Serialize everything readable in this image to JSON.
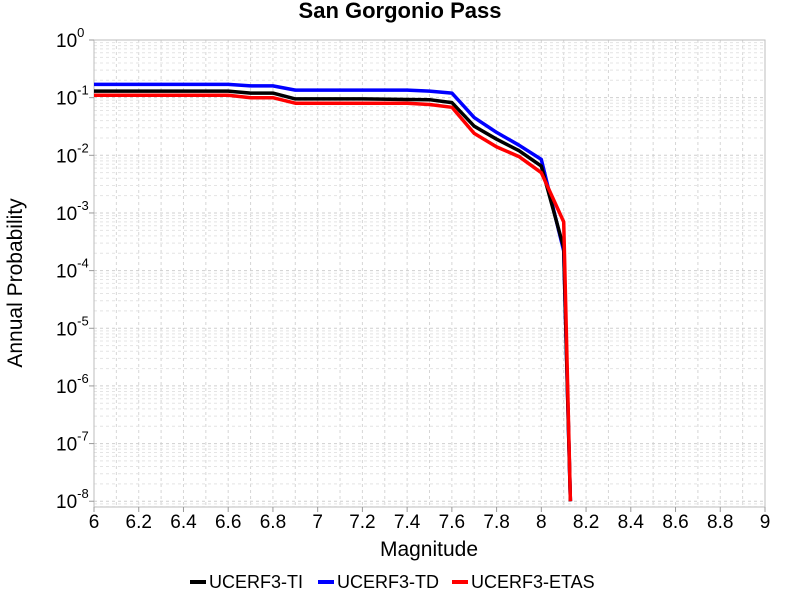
{
  "chart_data": {
    "type": "line",
    "title": "San Gorgonio Pass",
    "xlabel": "Magnitude",
    "ylabel": "Annual Probability",
    "xlim": [
      6,
      9
    ],
    "ylim_log10": [
      -8.1,
      0
    ],
    "yscale": "log",
    "grid": true,
    "legend_position": "bottom-center",
    "x_ticks": [
      "6",
      "6.2",
      "6.4",
      "6.6",
      "6.8",
      "7",
      "7.2",
      "7.4",
      "7.6",
      "7.8",
      "8",
      "8.2",
      "8.4",
      "8.6",
      "8.8",
      "9"
    ],
    "y_ticks": [
      {
        "base": "10",
        "exp": "0"
      },
      {
        "base": "10",
        "exp": "-1"
      },
      {
        "base": "10",
        "exp": "-2"
      },
      {
        "base": "10",
        "exp": "-3"
      },
      {
        "base": "10",
        "exp": "-4"
      },
      {
        "base": "10",
        "exp": "-5"
      },
      {
        "base": "10",
        "exp": "-6"
      },
      {
        "base": "10",
        "exp": "-7"
      },
      {
        "base": "10",
        "exp": "-8"
      }
    ],
    "series": [
      {
        "name": "UCERF3-TI",
        "color": "#000000",
        "x": [
          6.0,
          6.5,
          6.6,
          6.7,
          6.8,
          6.9,
          7.0,
          7.2,
          7.4,
          7.5,
          7.6,
          7.7,
          7.8,
          7.9,
          8.0,
          8.1,
          8.13
        ],
        "y": [
          0.13,
          0.13,
          0.13,
          0.12,
          0.12,
          0.095,
          0.095,
          0.095,
          0.093,
          0.092,
          0.082,
          0.032,
          0.019,
          0.012,
          0.0065,
          0.00025,
          1e-08
        ]
      },
      {
        "name": "UCERF3-TD",
        "color": "#0000ff",
        "x": [
          6.0,
          6.5,
          6.6,
          6.7,
          6.8,
          6.9,
          7.0,
          7.2,
          7.4,
          7.5,
          7.6,
          7.7,
          7.8,
          7.9,
          8.0,
          8.1,
          8.13
        ],
        "y": [
          0.17,
          0.17,
          0.17,
          0.16,
          0.16,
          0.135,
          0.135,
          0.135,
          0.135,
          0.13,
          0.12,
          0.045,
          0.025,
          0.015,
          0.0085,
          0.00022,
          1e-08
        ]
      },
      {
        "name": "UCERF3-ETAS",
        "color": "#ff0000",
        "x": [
          6.0,
          6.5,
          6.6,
          6.7,
          6.8,
          6.9,
          7.0,
          7.2,
          7.4,
          7.5,
          7.6,
          7.7,
          7.8,
          7.9,
          8.0,
          8.1,
          8.13
        ],
        "y": [
          0.11,
          0.11,
          0.11,
          0.1,
          0.1,
          0.08,
          0.08,
          0.08,
          0.08,
          0.076,
          0.068,
          0.024,
          0.014,
          0.0095,
          0.005,
          0.0007,
          1e-08
        ]
      }
    ]
  }
}
